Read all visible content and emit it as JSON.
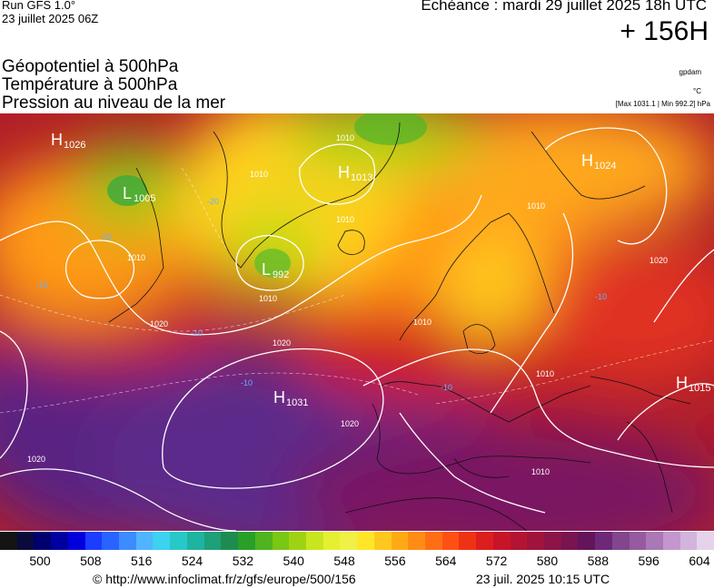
{
  "header": {
    "run_title": "Run GFS 1.0°",
    "run_date": "23 juillet 2025 06Z",
    "valid_time": "Echéance : mardi 29 juillet 2025 18h UTC",
    "lead_time": "+ 156H",
    "parameters": [
      "Géopotentiel à 500hPa",
      "Température à 500hPa",
      "Pression au niveau de la mer"
    ],
    "author": "gpdam",
    "temperature_unit": "°C",
    "pressure_extremes": "[Max 1031.1 | Min 992.2] hPa"
  },
  "map": {
    "highs": [
      {
        "symbol": "H",
        "value": "1026"
      },
      {
        "symbol": "H",
        "value": "1013"
      },
      {
        "symbol": "H",
        "value": "1024"
      },
      {
        "symbol": "H",
        "value": "1031"
      },
      {
        "symbol": "H",
        "value": "1015"
      }
    ],
    "lows": [
      {
        "symbol": "L",
        "value": "1005"
      },
      {
        "symbol": "L",
        "value": "992"
      }
    ],
    "isobar_labels": [
      "1010",
      "1010",
      "1010",
      "1010",
      "1010",
      "1010",
      "1010",
      "1010",
      "1010",
      "1020",
      "1020",
      "1020",
      "1020",
      "1020"
    ],
    "isotherm_labels": [
      "-20",
      "-20",
      "-10",
      "-10",
      "-10",
      "-10",
      "-10"
    ]
  },
  "color_scale": {
    "colors": [
      "#141414",
      "#0a0a3c",
      "#00006e",
      "#0000a0",
      "#0000dc",
      "#1e3cff",
      "#2864ff",
      "#3c8cff",
      "#50b4ff",
      "#3cd2f0",
      "#28c8c8",
      "#1eb4a0",
      "#1ea078",
      "#1e8c50",
      "#28a028",
      "#50b41e",
      "#78c814",
      "#a0d214",
      "#c8e61e",
      "#e6f032",
      "#f0f046",
      "#ffe628",
      "#ffc81e",
      "#ffaa14",
      "#ff8c14",
      "#ff6e14",
      "#ff5014",
      "#f03214",
      "#dc1e1e",
      "#c81428",
      "#b41432",
      "#a0143c",
      "#8c1446",
      "#781450",
      "#64145a",
      "#6e2878",
      "#82468c",
      "#965aa0",
      "#aa78b4",
      "#c396cd",
      "#d2b4dc",
      "#e6d2eb"
    ],
    "labels": [
      "500",
      "508",
      "516",
      "524",
      "532",
      "540",
      "548",
      "556",
      "564",
      "572",
      "580",
      "588",
      "596",
      "604"
    ]
  },
  "footer": {
    "copyright": "© http://www.infoclimat.fr/z/gfs/europe/500/156",
    "issue_time": "23 juil. 2025 10:15 UTC"
  }
}
